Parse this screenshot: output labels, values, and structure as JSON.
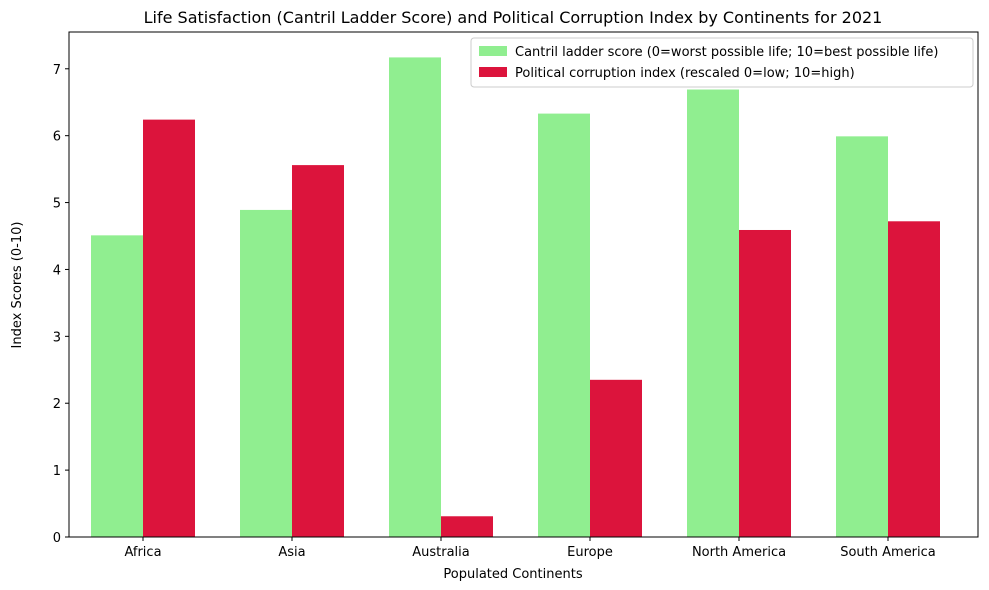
{
  "chart_data": {
    "type": "bar",
    "title": "Life Satisfaction (Cantril Ladder Score) and Political Corruption Index by Continents for 2021",
    "xlabel": "Populated Continents",
    "ylabel": "Index Scores (0-10)",
    "categories": [
      "Africa",
      "Asia",
      "Australia",
      "Europe",
      "North America",
      "South America"
    ],
    "series": [
      {
        "name": "Cantril ladder score (0=worst possible life; 10=best possible life)",
        "color": "#90ee90",
        "values": [
          4.51,
          4.89,
          7.17,
          6.33,
          6.69,
          5.99
        ]
      },
      {
        "name": "Political corruption index (rescaled 0=low; 10=high)",
        "color": "#dc143c",
        "values": [
          6.24,
          5.56,
          0.31,
          2.35,
          4.59,
          4.72
        ]
      }
    ],
    "ylim": [
      0,
      7.55
    ],
    "yticks": [
      0,
      1,
      2,
      3,
      4,
      5,
      6,
      7
    ],
    "grid": false,
    "legend_position": "top-right"
  }
}
